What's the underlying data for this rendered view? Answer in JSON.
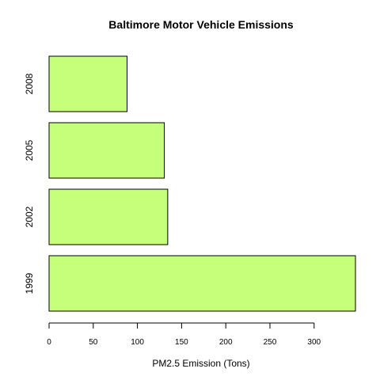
{
  "chart_data": {
    "type": "bar",
    "orientation": "horizontal",
    "title": "Baltimore Motor Vehicle Emissions",
    "xlabel": "PM2.5 Emission (Tons)",
    "ylabel": "",
    "categories": [
      "1999",
      "2002",
      "2005",
      "2008"
    ],
    "values": [
      346.8,
      134.3,
      130.4,
      88.3
    ],
    "xlim": [
      0,
      346.8
    ],
    "x_ticks": [
      0,
      50,
      100,
      150,
      200,
      250,
      300
    ],
    "bar_color": "#C6FF7A",
    "grid": false,
    "legend": "none"
  }
}
